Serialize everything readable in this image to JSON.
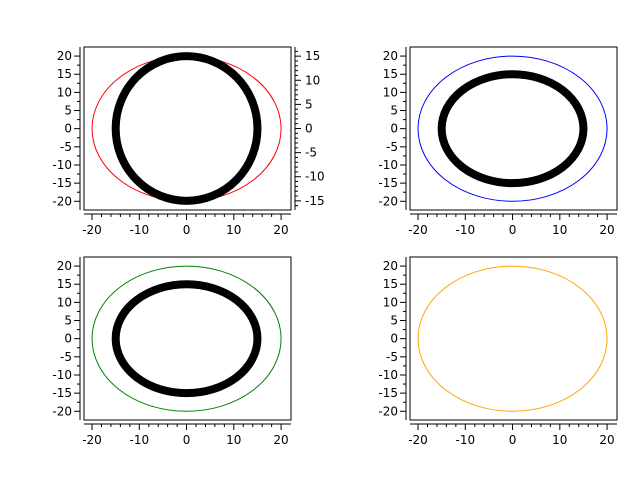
{
  "chart_data": [
    {
      "type": "line",
      "xlim": [
        -21.7,
        22.1
      ],
      "ylim": [
        -22.4,
        22.5
      ],
      "xticks": [
        -20,
        -10,
        0,
        10,
        20
      ],
      "yticks": [
        -20,
        -15,
        -10,
        -5,
        0,
        5,
        10,
        15,
        20
      ],
      "grid": false,
      "series": [
        {
          "shape": "circle",
          "center": [
            0,
            0
          ],
          "radius": 20,
          "color": "#ff0000",
          "axis": "left"
        },
        {
          "shape": "circle",
          "center": [
            0,
            0
          ],
          "radius": 15,
          "color": "#000000",
          "thick": true,
          "axis": "right"
        }
      ],
      "y2lim": [
        -16.9,
        16.9
      ],
      "y2ticks": [
        -15,
        -10,
        -5,
        0,
        5,
        10,
        15
      ]
    },
    {
      "type": "line",
      "xlim": [
        -21.7,
        22.1
      ],
      "ylim": [
        -22.4,
        22.5
      ],
      "xticks": [
        -20,
        -10,
        0,
        10,
        20
      ],
      "yticks": [
        -20,
        -15,
        -10,
        -5,
        0,
        5,
        10,
        15,
        20
      ],
      "grid": false,
      "series": [
        {
          "shape": "circle",
          "center": [
            0,
            0
          ],
          "radius": 20,
          "color": "#0000ff",
          "axis": "left"
        },
        {
          "shape": "circle",
          "center": [
            0,
            0
          ],
          "radius": 15,
          "color": "#000000",
          "thick": true,
          "axis": "left"
        }
      ]
    },
    {
      "type": "line",
      "xlim": [
        -21.7,
        22.1
      ],
      "ylim": [
        -22.4,
        22.5
      ],
      "xticks": [
        -20,
        -10,
        0,
        10,
        20
      ],
      "yticks": [
        -20,
        -15,
        -10,
        -5,
        0,
        5,
        10,
        15,
        20
      ],
      "grid": false,
      "series": [
        {
          "shape": "circle",
          "center": [
            0,
            0
          ],
          "radius": 20,
          "color": "#008000",
          "axis": "left"
        },
        {
          "shape": "circle",
          "center": [
            0,
            0
          ],
          "radius": 15,
          "color": "#000000",
          "thick": true,
          "axis": "left"
        }
      ]
    },
    {
      "type": "line",
      "xlim": [
        -21.7,
        22.1
      ],
      "ylim": [
        -22.4,
        22.5
      ],
      "xticks": [
        -20,
        -10,
        0,
        10,
        20
      ],
      "yticks": [
        -20,
        -15,
        -10,
        -5,
        0,
        5,
        10,
        15,
        20
      ],
      "grid": false,
      "series": [
        {
          "shape": "circle",
          "center": [
            0,
            0
          ],
          "radius": 20,
          "color": "#ffa500",
          "axis": "left"
        }
      ]
    }
  ]
}
